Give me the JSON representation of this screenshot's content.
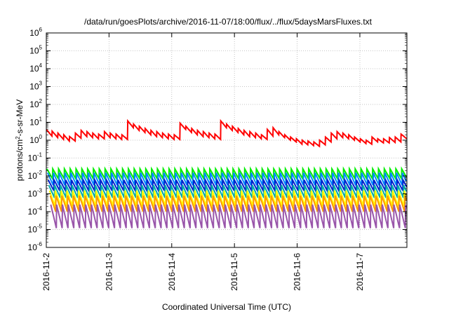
{
  "chart_data": {
    "type": "line",
    "title": "/data/run/goesPlots/archive/2016-11-07/18:00/flux/../flux/5daysMarsFluxes.txt",
    "xlabel": "Coordinated Universal Time (UTC)",
    "ylabel": "protons/cm2-s-sr-MeV",
    "ylabel_parts": {
      "pre": "protons/cm",
      "sup": "2",
      "post": "-s-sr-MeV"
    },
    "yscale": "log",
    "ylim": [
      1e-06,
      1000000.0
    ],
    "yticks": [
      {
        "base": "10",
        "exp": "-6"
      },
      {
        "base": "10",
        "exp": "-5"
      },
      {
        "base": "10",
        "exp": "-4"
      },
      {
        "base": "10",
        "exp": "-3"
      },
      {
        "base": "10",
        "exp": "-2"
      },
      {
        "base": "10",
        "exp": "-1"
      },
      {
        "base": "10",
        "exp": "0"
      },
      {
        "base": "10",
        "exp": "1"
      },
      {
        "base": "10",
        "exp": "2"
      },
      {
        "base": "10",
        "exp": "3"
      },
      {
        "base": "10",
        "exp": "4"
      },
      {
        "base": "10",
        "exp": "5"
      },
      {
        "base": "10",
        "exp": "6"
      }
    ],
    "xlim": [
      "2016-11-02T00:00",
      "2016-11-07T18:00"
    ],
    "xticks": [
      "2016-11-2",
      "2016-11-3",
      "2016-11-4",
      "2016-11-5",
      "2016-11-6",
      "2016-11-7"
    ],
    "grid": true,
    "legend": false,
    "series": [
      {
        "color": "#ff0000",
        "peak_values": [
          4.0,
          3.2,
          2.5,
          2.0,
          1.6,
          2.5,
          3.5,
          3.0,
          2.5,
          2.2,
          3.0,
          2.5,
          2.2,
          2.0,
          12.0,
          8.0,
          6.0,
          4.5,
          3.5,
          3.0,
          2.5,
          2.2,
          2.0,
          9.0,
          6.0,
          4.5,
          3.5,
          3.0,
          2.5,
          2.2,
          12.0,
          8.0,
          6.0,
          4.5,
          3.5,
          3.0,
          2.5,
          2.0,
          4.0,
          5.0,
          3.0,
          2.0,
          1.5,
          1.2,
          1.0,
          0.9,
          0.8,
          1.0,
          1.5,
          2.5,
          3.0,
          2.5,
          2.0,
          1.5,
          1.2,
          1.0,
          1.5,
          1.2,
          1.2,
          1.4,
          1.5,
          2.2
        ],
        "trough_values": [
          1.7,
          1.4,
          1.1,
          0.9,
          0.9,
          1.3,
          1.6,
          1.4,
          1.2,
          1.2,
          1.4,
          1.2,
          1.1,
          1.1,
          5.0,
          3.5,
          2.7,
          2.0,
          1.6,
          1.4,
          1.2,
          1.1,
          1.1,
          4.0,
          2.7,
          2.0,
          1.6,
          1.4,
          1.2,
          1.1,
          5.0,
          3.5,
          2.7,
          2.0,
          1.6,
          1.4,
          1.2,
          1.1,
          1.7,
          2.0,
          1.4,
          1.0,
          0.8,
          0.6,
          0.55,
          0.5,
          0.45,
          0.55,
          0.8,
          1.2,
          1.4,
          1.2,
          1.0,
          0.8,
          0.65,
          0.6,
          0.8,
          0.7,
          0.7,
          0.75,
          0.8,
          1.2
        ]
      },
      {
        "color": "#00ee00",
        "peak": 0.025,
        "trough": 0.007
      },
      {
        "color": "#0088ff",
        "peak": 0.015,
        "trough": 0.003
      },
      {
        "color": "#0022cc",
        "peak": 0.006,
        "trough": 0.0015
      },
      {
        "color": "#00aaaa",
        "peak": 0.003,
        "trough": 0.0006
      },
      {
        "color": "#ffff00",
        "peak": 0.0015,
        "trough": 0.0002
      },
      {
        "color": "#ff9900",
        "peak": 0.0008,
        "trough": 0.0001
      },
      {
        "color": "#9955aa",
        "peak": 0.00025,
        "trough": 1.2e-05
      }
    ]
  }
}
